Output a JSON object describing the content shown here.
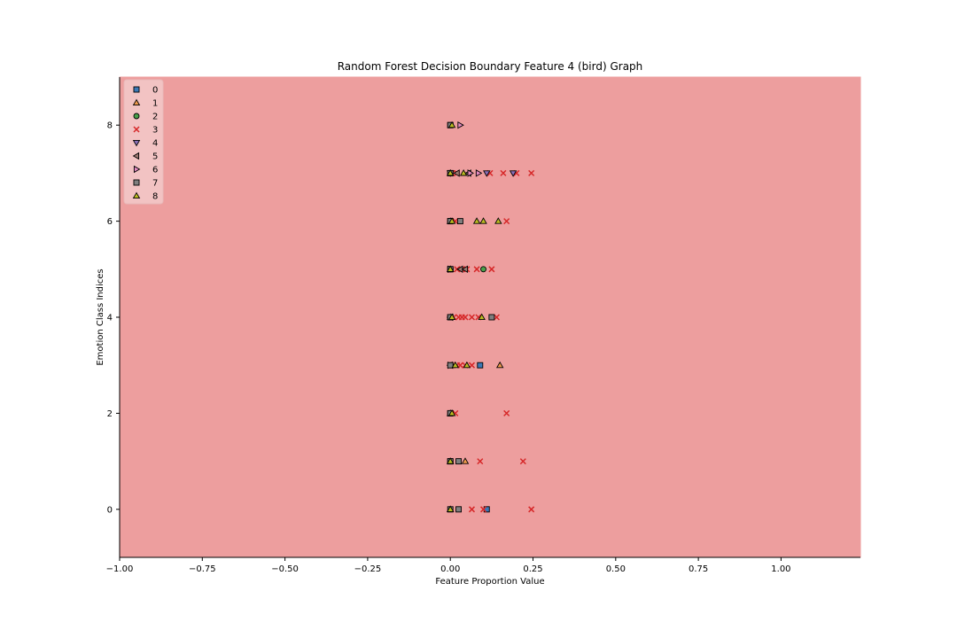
{
  "chart_data": {
    "type": "scatter",
    "title": "Random Forest Decision Boundary Feature 4 (bird) Graph",
    "xlabel": "Feature Proportion Value",
    "ylabel": "Emotion Class Indices",
    "xlim": [
      -1.0,
      1.24
    ],
    "ylim": [
      -1.0,
      9.0
    ],
    "xticks": [
      -1.0,
      -0.75,
      -0.5,
      -0.25,
      0.0,
      0.25,
      0.5,
      0.75,
      1.0
    ],
    "xtick_labels": [
      "−1.00",
      "−0.75",
      "−0.50",
      "−0.25",
      "0.00",
      "0.25",
      "0.50",
      "0.75",
      "1.00"
    ],
    "yticks": [
      0,
      2,
      4,
      6,
      8
    ],
    "ytick_labels": [
      "0",
      "2",
      "4",
      "6",
      "8"
    ],
    "grid": false,
    "background_region_color": "#ed9e9e",
    "legend_position": "top-left",
    "series": [
      {
        "name": "0",
        "marker": "square",
        "color": "#3b78b5",
        "points": [
          [
            0.0,
            8
          ],
          [
            0.0,
            7
          ],
          [
            0.0,
            6
          ],
          [
            0.0,
            5
          ],
          [
            0.0,
            4
          ],
          [
            0.09,
            3
          ],
          [
            0.0,
            2
          ],
          [
            0.0,
            1
          ],
          [
            0.11,
            0
          ]
        ]
      },
      {
        "name": "1",
        "marker": "triangle-up",
        "color": "#f09a4c",
        "points": [
          [
            0.0,
            7
          ],
          [
            0.0,
            6
          ],
          [
            0.0,
            5
          ],
          [
            0.0,
            4
          ],
          [
            0.005,
            3
          ],
          [
            0.15,
            3
          ],
          [
            0.0,
            2
          ],
          [
            0.045,
            1
          ],
          [
            0.0,
            1
          ],
          [
            0.0,
            0
          ]
        ]
      },
      {
        "name": "2",
        "marker": "circle",
        "color": "#4aa04a",
        "points": [
          [
            0.1,
            5
          ],
          [
            0.0,
            5
          ],
          [
            0.0,
            4
          ],
          [
            0.0,
            6
          ],
          [
            0.0,
            3
          ]
        ]
      },
      {
        "name": "3",
        "marker": "x",
        "color": "#d62728",
        "points": [
          [
            0.12,
            7
          ],
          [
            0.16,
            7
          ],
          [
            0.2,
            7
          ],
          [
            0.245,
            7
          ],
          [
            0.005,
            7
          ],
          [
            0.02,
            7
          ],
          [
            0.17,
            6
          ],
          [
            0.015,
            6
          ],
          [
            0.05,
            5
          ],
          [
            0.08,
            5
          ],
          [
            0.125,
            5
          ],
          [
            0.02,
            5
          ],
          [
            0.035,
            5
          ],
          [
            0.01,
            4
          ],
          [
            0.025,
            4
          ],
          [
            0.035,
            4
          ],
          [
            0.045,
            4
          ],
          [
            0.065,
            4
          ],
          [
            0.085,
            4
          ],
          [
            0.14,
            4
          ],
          [
            0.02,
            3
          ],
          [
            0.03,
            3
          ],
          [
            0.045,
            3
          ],
          [
            0.065,
            3
          ],
          [
            0.015,
            2
          ],
          [
            0.17,
            2
          ],
          [
            0.09,
            1
          ],
          [
            0.22,
            1
          ],
          [
            0.065,
            0
          ],
          [
            0.1,
            0
          ],
          [
            0.245,
            0
          ]
        ]
      },
      {
        "name": "4",
        "marker": "triangle-down",
        "color": "#8a70b8",
        "points": [
          [
            0.0,
            7
          ],
          [
            0.19,
            7
          ],
          [
            0.11,
            7
          ]
        ]
      },
      {
        "name": "5",
        "marker": "triangle-left",
        "color": "#9e7a72",
        "points": [
          [
            0.02,
            7
          ],
          [
            0.055,
            7
          ],
          [
            0.03,
            5
          ],
          [
            0.045,
            5
          ],
          [
            0.0,
            4
          ],
          [
            0.0,
            3
          ]
        ]
      },
      {
        "name": "6",
        "marker": "triangle-right",
        "color": "#e68ac3",
        "points": [
          [
            0.03,
            8
          ],
          [
            0.06,
            7
          ],
          [
            0.085,
            7
          ],
          [
            0.0,
            5
          ],
          [
            0.0,
            3
          ]
        ]
      },
      {
        "name": "7",
        "marker": "square",
        "color": "#7f7f7f",
        "points": [
          [
            0.0,
            8
          ],
          [
            0.0,
            7
          ],
          [
            0.03,
            6
          ],
          [
            0.0,
            6
          ],
          [
            0.0,
            5
          ],
          [
            0.0,
            4
          ],
          [
            0.125,
            4
          ],
          [
            0.0,
            3
          ],
          [
            0.0,
            2
          ],
          [
            0.0,
            1
          ],
          [
            0.025,
            1
          ],
          [
            0.0,
            0
          ],
          [
            0.025,
            0
          ]
        ]
      },
      {
        "name": "8",
        "marker": "triangle-up",
        "color": "#bcbd22",
        "points": [
          [
            0.005,
            8
          ],
          [
            0.0,
            7
          ],
          [
            0.04,
            7
          ],
          [
            0.08,
            6
          ],
          [
            0.1,
            6
          ],
          [
            0.145,
            6
          ],
          [
            0.005,
            6
          ],
          [
            0.0,
            5
          ],
          [
            0.005,
            4
          ],
          [
            0.095,
            4
          ],
          [
            0.015,
            3
          ],
          [
            0.05,
            3
          ],
          [
            0.005,
            2
          ],
          [
            0.0,
            1
          ],
          [
            0.0,
            0
          ]
        ]
      }
    ]
  }
}
